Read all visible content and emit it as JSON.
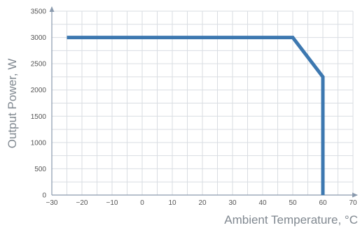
{
  "chart_data": {
    "type": "line",
    "title": "",
    "xlabel": "Ambient Temperature, °C",
    "ylabel": "Output Power, W",
    "xlim": [
      -30,
      70
    ],
    "ylim": [
      0,
      3500
    ],
    "x_ticks": [
      -30,
      -20,
      -10,
      0,
      10,
      20,
      30,
      40,
      50,
      60,
      70
    ],
    "y_ticks": [
      0,
      500,
      1000,
      1500,
      2000,
      2500,
      3000,
      3500
    ],
    "grid_x_step": 5,
    "grid_y_step": 250,
    "grid": true,
    "series": [
      {
        "x": [
          -25,
          50,
          60,
          60
        ],
        "y": [
          3000,
          3000,
          2250,
          0
        ],
        "color": "#3d78b0"
      }
    ]
  },
  "colors": {
    "grid": "#d9dde2",
    "axis": "#8a9aae",
    "line": "#3d78b0"
  }
}
